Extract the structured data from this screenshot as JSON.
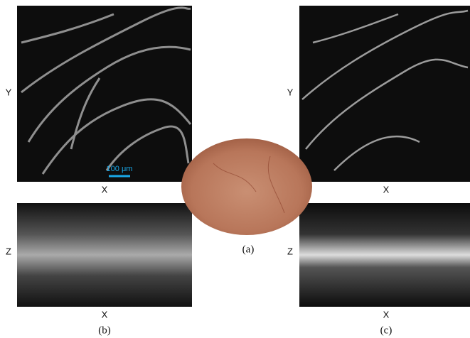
{
  "panels": {
    "a": {
      "label": "(a)"
    },
    "b": {
      "label": "(b)",
      "en_face_y_axis": "Y",
      "en_face_x_axis": "X",
      "cross_section_y_axis": "Z",
      "cross_section_x_axis": "X",
      "scale_bar": "100 μm"
    },
    "c": {
      "label": "(c)",
      "en_face_y_axis": "Y",
      "en_face_x_axis": "X",
      "cross_section_y_axis": "Z",
      "cross_section_x_axis": "X"
    }
  }
}
